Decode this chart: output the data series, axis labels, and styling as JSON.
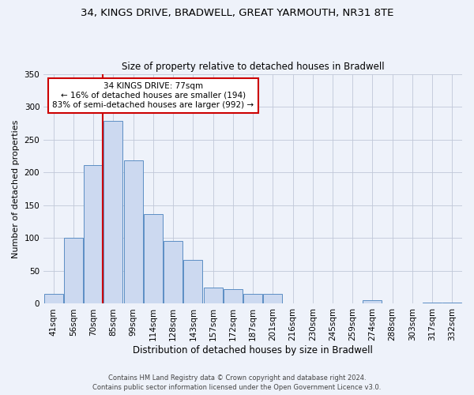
{
  "title1": "34, KINGS DRIVE, BRADWELL, GREAT YARMOUTH, NR31 8TE",
  "title2": "Size of property relative to detached houses in Bradwell",
  "xlabel": "Distribution of detached houses by size in Bradwell",
  "ylabel": "Number of detached properties",
  "bar_labels": [
    "41sqm",
    "56sqm",
    "70sqm",
    "85sqm",
    "99sqm",
    "114sqm",
    "128sqm",
    "143sqm",
    "157sqm",
    "172sqm",
    "187sqm",
    "201sqm",
    "216sqm",
    "230sqm",
    "245sqm",
    "259sqm",
    "274sqm",
    "288sqm",
    "303sqm",
    "317sqm",
    "332sqm"
  ],
  "bar_values": [
    15,
    101,
    211,
    279,
    218,
    136,
    95,
    67,
    25,
    22,
    15,
    15,
    0,
    0,
    0,
    0,
    5,
    0,
    0,
    2,
    2
  ],
  "bar_color": "#ccd9f0",
  "bar_edge_color": "#5b8ec4",
  "vline_color": "#cc0000",
  "annotation_title": "34 KINGS DRIVE: 77sqm",
  "annotation_line1": "← 16% of detached houses are smaller (194)",
  "annotation_line2": "83% of semi-detached houses are larger (992) →",
  "annotation_box_color": "#ffffff",
  "annotation_box_edge": "#cc0000",
  "ylim": [
    0,
    350
  ],
  "yticks": [
    0,
    50,
    100,
    150,
    200,
    250,
    300,
    350
  ],
  "footer1": "Contains HM Land Registry data © Crown copyright and database right 2024.",
  "footer2": "Contains public sector information licensed under the Open Government Licence v3.0.",
  "bg_color": "#eef2fa"
}
